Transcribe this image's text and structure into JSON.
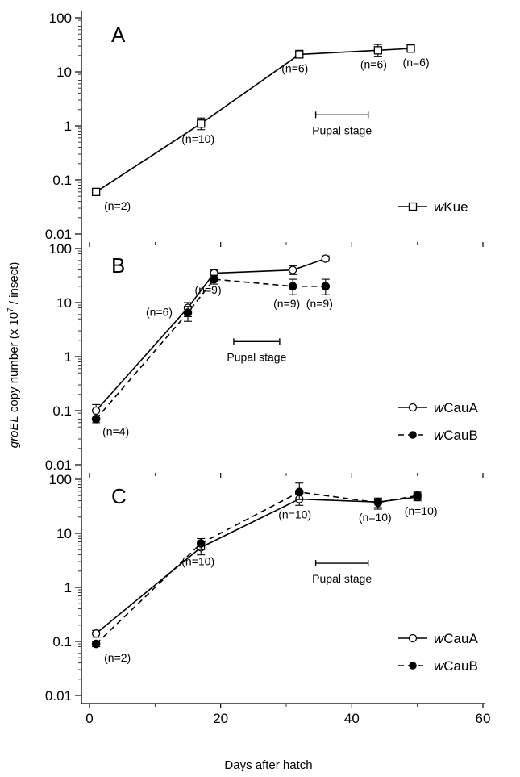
{
  "chart_data": [
    {
      "type": "line",
      "panel": "A",
      "yscale": "log",
      "ylim": [
        0.01,
        100
      ],
      "xlim": [
        0,
        60
      ],
      "series": [
        {
          "name": "wKue",
          "name_prefix": "w",
          "name_rest": "Kue",
          "marker": "open-square",
          "line": "solid",
          "x": [
            1,
            17,
            32,
            44,
            49
          ],
          "y": [
            0.06,
            1.1,
            21,
            25,
            27
          ],
          "err_lo": [
            0.052,
            0.85,
            18,
            19,
            23
          ],
          "err_hi": [
            0.068,
            1.4,
            25,
            32,
            32
          ]
        }
      ],
      "point_labels": [
        {
          "text": "(n=2)",
          "x": 1,
          "y": 0.06
        },
        {
          "text": "(n=10)",
          "x": 17,
          "y": 1.1
        },
        {
          "text": "(n=6)",
          "x": 32,
          "y": 21
        },
        {
          "text": "(n=6)",
          "x": 44,
          "y": 25
        },
        {
          "text": "(n=6)",
          "x": 49,
          "y": 27
        }
      ],
      "pupal_stage": {
        "label": "Pupal stage",
        "x": [
          34.5,
          42.5
        ],
        "y": 1.6
      }
    },
    {
      "type": "line",
      "panel": "B",
      "yscale": "log",
      "ylim": [
        0.01,
        100
      ],
      "xlim": [
        0,
        60
      ],
      "series": [
        {
          "name": "wCauA",
          "name_prefix": "w",
          "name_rest": "CauA",
          "marker": "open-circle",
          "line": "solid",
          "x": [
            1,
            15,
            19,
            31,
            36
          ],
          "y": [
            0.1,
            8,
            35,
            40,
            65
          ],
          "err_lo": [
            0.08,
            5.5,
            30,
            33,
            58
          ],
          "err_hi": [
            0.13,
            10,
            40,
            48,
            73
          ]
        },
        {
          "name": "wCauB",
          "name_prefix": "w",
          "name_rest": "CauB",
          "marker": "filled-circle",
          "line": "dashed",
          "x": [
            1,
            15,
            19,
            31,
            36
          ],
          "y": [
            0.07,
            6.5,
            27,
            20,
            20
          ],
          "err_lo": [
            0.06,
            4.5,
            22,
            14,
            14
          ],
          "err_hi": [
            0.08,
            8.5,
            32,
            27,
            27
          ]
        }
      ],
      "point_labels": [
        {
          "text": "(n=4)",
          "x": 1,
          "y": 0.07
        },
        {
          "text": "(n=6)",
          "x": 15,
          "y": 8
        },
        {
          "text": "(n=9)",
          "x": 19,
          "y": 27
        },
        {
          "text": "(n=9)",
          "x": 31,
          "y": 20
        },
        {
          "text": "(n=9)",
          "x": 36,
          "y": 20
        }
      ],
      "pupal_stage": {
        "label": "Pupal stage",
        "x": [
          22,
          29
        ],
        "y": 1.9
      }
    },
    {
      "type": "line",
      "panel": "C",
      "yscale": "log",
      "ylim": [
        0.01,
        100
      ],
      "xlim": [
        0,
        60
      ],
      "xlabel": "Days after hatch",
      "xticks": [
        0,
        20,
        40,
        60
      ],
      "series": [
        {
          "name": "wCauA",
          "name_prefix": "w",
          "name_rest": "CauA",
          "marker": "open-circle",
          "line": "solid",
          "x": [
            1,
            17,
            32,
            44,
            50
          ],
          "y": [
            0.14,
            5.5,
            43,
            38,
            47
          ],
          "err_lo": [
            0.12,
            4,
            33,
            28,
            40
          ],
          "err_hi": [
            0.16,
            7,
            55,
            45,
            55
          ]
        },
        {
          "name": "wCauB",
          "name_prefix": "w",
          "name_rest": "CauB",
          "marker": "filled-circle",
          "line": "dashed",
          "x": [
            1,
            17,
            32,
            44,
            50
          ],
          "y": [
            0.09,
            6.5,
            58,
            37,
            50
          ],
          "err_lo": [
            0.08,
            5,
            42,
            30,
            42
          ],
          "err_hi": [
            0.1,
            8,
            85,
            42,
            58
          ]
        }
      ],
      "point_labels": [
        {
          "text": "(n=2)",
          "x": 1,
          "y": 0.09
        },
        {
          "text": "(n=10)",
          "x": 17,
          "y": 5.5
        },
        {
          "text": "(n=10)",
          "x": 32,
          "y": 43
        },
        {
          "text": "(n=10)",
          "x": 44,
          "y": 38
        },
        {
          "text": "(n=10)",
          "x": 50,
          "y": 47
        }
      ],
      "pupal_stage": {
        "label": "Pupal stage",
        "x": [
          34.5,
          42.5
        ],
        "y": 2.8
      }
    }
  ],
  "ylabel": {
    "italic": "groEL",
    "rest_before_sup": " copy number (x 10",
    "sup": "7",
    "rest_after_sup": " / insect)"
  },
  "ytick_labels": [
    "0.01",
    "0.1",
    "1",
    "10",
    "100"
  ],
  "xtick_labels": [
    "0",
    "20",
    "40",
    "60"
  ],
  "xlabel": "Days after hatch"
}
